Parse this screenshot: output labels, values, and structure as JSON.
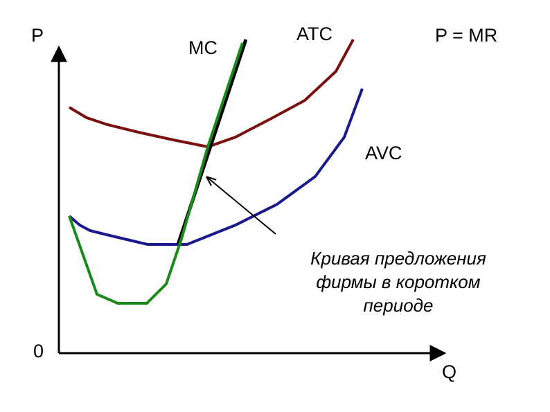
{
  "axes": {
    "y_label": "P",
    "x_label": "Q",
    "origin": "0"
  },
  "curves": {
    "mc": "MC",
    "atc": "ATC",
    "price": "P = MR",
    "avc": "AVC"
  },
  "annotation": {
    "lines": [
      "Кривая предложения",
      "фирмы в коротком",
      "периоде"
    ]
  }
}
